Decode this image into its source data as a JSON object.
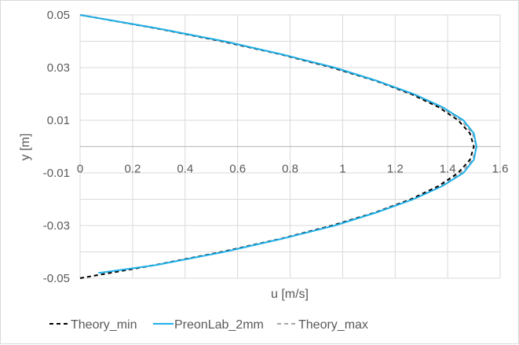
{
  "chart_data": {
    "type": "line",
    "title": "",
    "xlabel": "u [m/s]",
    "ylabel": "y [m]",
    "xlim": [
      0,
      1.6
    ],
    "ylim": [
      -0.05,
      0.05
    ],
    "xticks": [
      "0",
      "0.2",
      "0.4",
      "0.6",
      "0.8",
      "1",
      "1.2",
      "1.4",
      "1.6"
    ],
    "xtick_values": [
      0,
      0.2,
      0.4,
      0.6,
      0.8,
      1,
      1.2,
      1.4,
      1.6
    ],
    "yticks": [
      "0.05",
      "0.03",
      "0.01",
      "-0.01",
      "-0.03",
      "-0.05"
    ],
    "ytick_values": [
      0.05,
      0.03,
      0.01,
      -0.01,
      -0.03,
      -0.05
    ],
    "grid": true,
    "legend_position": "bottom",
    "series": [
      {
        "name": "Theory_min",
        "color": "#000000",
        "style": "dashed",
        "y": [
          -0.05,
          -0.045,
          -0.04,
          -0.035,
          -0.03,
          -0.025,
          -0.02,
          -0.015,
          -0.01,
          -0.005,
          0,
          0.005,
          0.01,
          0.015,
          0.02,
          0.025,
          0.03,
          0.035,
          0.04,
          0.045,
          0.05
        ],
        "u": [
          0,
          0.285,
          0.54,
          0.765,
          0.96,
          1.125,
          1.26,
          1.365,
          1.44,
          1.485,
          1.5,
          1.485,
          1.44,
          1.365,
          1.26,
          1.125,
          0.96,
          0.765,
          0.54,
          0.285,
          0
        ]
      },
      {
        "name": "PreonLab_2mm",
        "color": "#1fb0e8",
        "style": "solid",
        "y": [
          -0.048,
          -0.045,
          -0.04,
          -0.035,
          -0.03,
          -0.025,
          -0.02,
          -0.015,
          -0.01,
          -0.005,
          0,
          0.005,
          0.01,
          0.015,
          0.02,
          0.025,
          0.03,
          0.035,
          0.04,
          0.045,
          0.05
        ],
        "u": [
          0.07,
          0.29,
          0.55,
          0.77,
          0.97,
          1.13,
          1.27,
          1.38,
          1.46,
          1.5,
          1.51,
          1.5,
          1.46,
          1.38,
          1.27,
          1.13,
          0.97,
          0.77,
          0.55,
          0.29,
          0.0
        ]
      },
      {
        "name": "Theory_max",
        "color": "#a6a6a6",
        "style": "dashed",
        "y": [
          -0.05,
          -0.045,
          -0.04,
          -0.035,
          -0.03,
          -0.025,
          -0.02,
          -0.015,
          -0.01,
          -0.005,
          0,
          0.005,
          0.01,
          0.015,
          0.02,
          0.025,
          0.03,
          0.035,
          0.04,
          0.045,
          0.05
        ],
        "u": [
          0,
          0.287,
          0.545,
          0.77,
          0.965,
          1.13,
          1.265,
          1.372,
          1.45,
          1.495,
          1.51,
          1.495,
          1.45,
          1.372,
          1.265,
          1.13,
          0.965,
          0.77,
          0.545,
          0.287,
          0
        ]
      }
    ]
  }
}
